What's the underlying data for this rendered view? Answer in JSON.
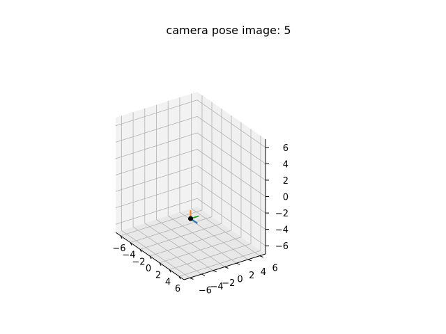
{
  "chart_data": {
    "type": "scatter",
    "projection": "3d",
    "title": "camera pose image: 5",
    "xlabel": "",
    "ylabel": "",
    "zlabel": "",
    "xlim": [
      -7,
      7
    ],
    "ylim": [
      -7,
      7
    ],
    "zlim": [
      -7,
      7
    ],
    "x_ticks": [
      "−6",
      "−4",
      "−2",
      "0",
      "2",
      "4",
      "6"
    ],
    "y_ticks": [
      "−6",
      "−4",
      "−2",
      "0",
      "2",
      "4",
      "6"
    ],
    "z_ticks": [
      "−6",
      "−4",
      "−2",
      "0",
      "2",
      "4",
      "6"
    ],
    "grid": true,
    "pane_colors": {
      "left": "#f2f2f2",
      "back": "#f0f0f0",
      "floor": "#e8e8e8"
    },
    "grid_color": "#b0b0b0",
    "points": [
      {
        "x": 0,
        "y": 0,
        "z": -4,
        "color": "#000000"
      }
    ],
    "axes_arrows": [
      {
        "axis": "x",
        "color": "#1f77b4",
        "length": 1
      },
      {
        "axis": "y",
        "color": "#2ca02c",
        "length": 1
      },
      {
        "axis": "z",
        "color": "#ff7f0e",
        "length": 1
      }
    ]
  }
}
